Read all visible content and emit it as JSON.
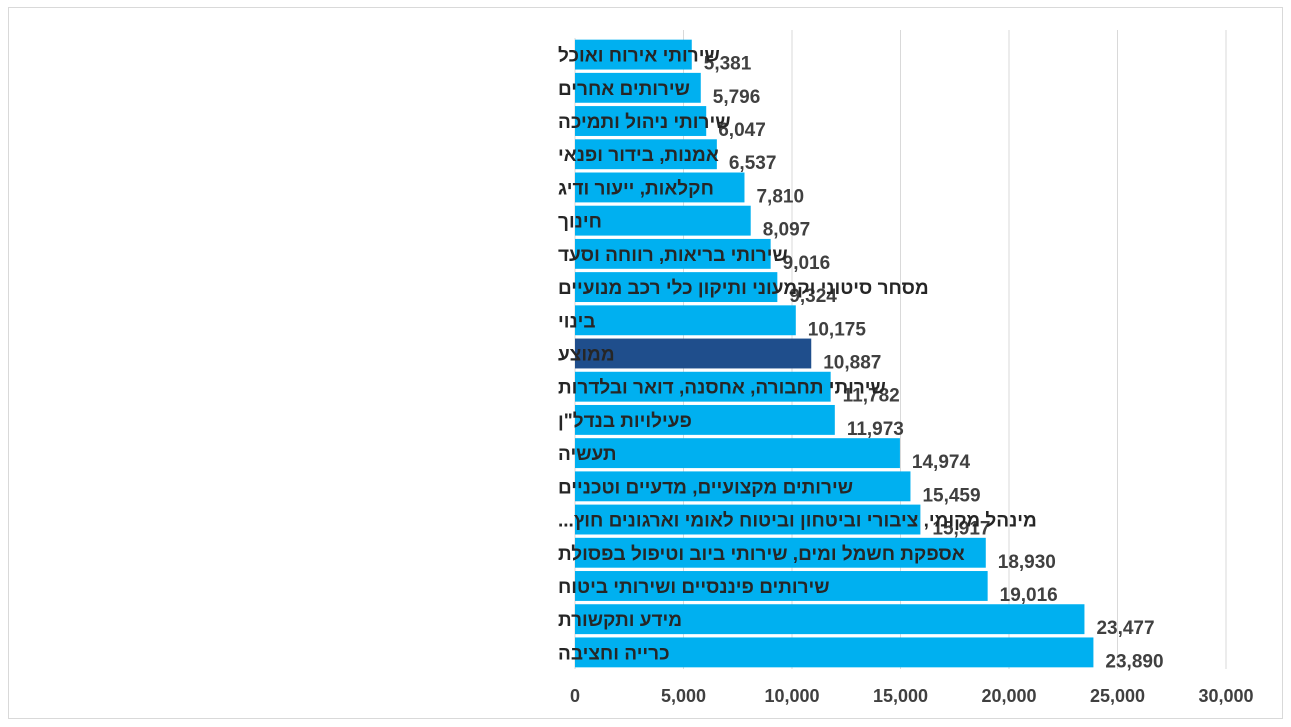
{
  "chart_data": {
    "type": "bar",
    "orientation": "horizontal",
    "categories": [
      "שירותי אירוח ואוכל",
      "שירותים אחרים",
      "שירותי ניהול ותמיכה",
      "אמנות, בידור ופנאי",
      "חקלאות, ייעור ודיג",
      "חינוך",
      "שירותי בריאות, רווחה וסעד",
      "מסחר סיטוני וקמעוני ותיקון כלי רכב מנועיים",
      "בינוי",
      "ממוצע",
      "שירותי תחבורה, אחסנה, דואר ובלדרות",
      "פעילויות בנדל\"ן",
      "תעשיה",
      "שירותים מקצועיים, מדעיים וטכניים",
      "מינהל מקומי, ציבורי וביטחון וביטוח לאומי וארגונים חוץ...",
      "אספקת חשמל ומים, שירותי ביוב וטיפול בפסולת",
      "שירותים פיננסיים ושירותי ביטוח",
      "מידע ותקשורת",
      "כרייה וחציבה"
    ],
    "values": [
      5381,
      5796,
      6047,
      6537,
      7810,
      8097,
      9016,
      9324,
      10175,
      10887,
      11782,
      11973,
      14974,
      15459,
      15917,
      18930,
      19016,
      23477,
      23890
    ],
    "value_labels": [
      "5,381",
      "5,796",
      "6,047",
      "6,537",
      "7,810",
      "8,097",
      "9,016",
      "9,324",
      "10,175",
      "10,887",
      "11,782",
      "11,973",
      "14,974",
      "15,459",
      "15,917",
      "18,930",
      "19,016",
      "23,477",
      "23,890"
    ],
    "highlight_index": 9,
    "xlim": [
      0,
      30000
    ],
    "x_ticks": [
      0,
      5000,
      10000,
      15000,
      20000,
      25000,
      30000
    ],
    "x_tick_labels": [
      "0",
      "5,000",
      "10,000",
      "15,000",
      "20,000",
      "25,000",
      "30,000"
    ],
    "grid": "vertical",
    "legend": "none",
    "title": "",
    "xlabel": "",
    "ylabel": "",
    "colors": {
      "bar": "#00b0f0",
      "highlight": "#1f4e8c",
      "grid": "#d9d9d9",
      "text": "#404040"
    }
  }
}
